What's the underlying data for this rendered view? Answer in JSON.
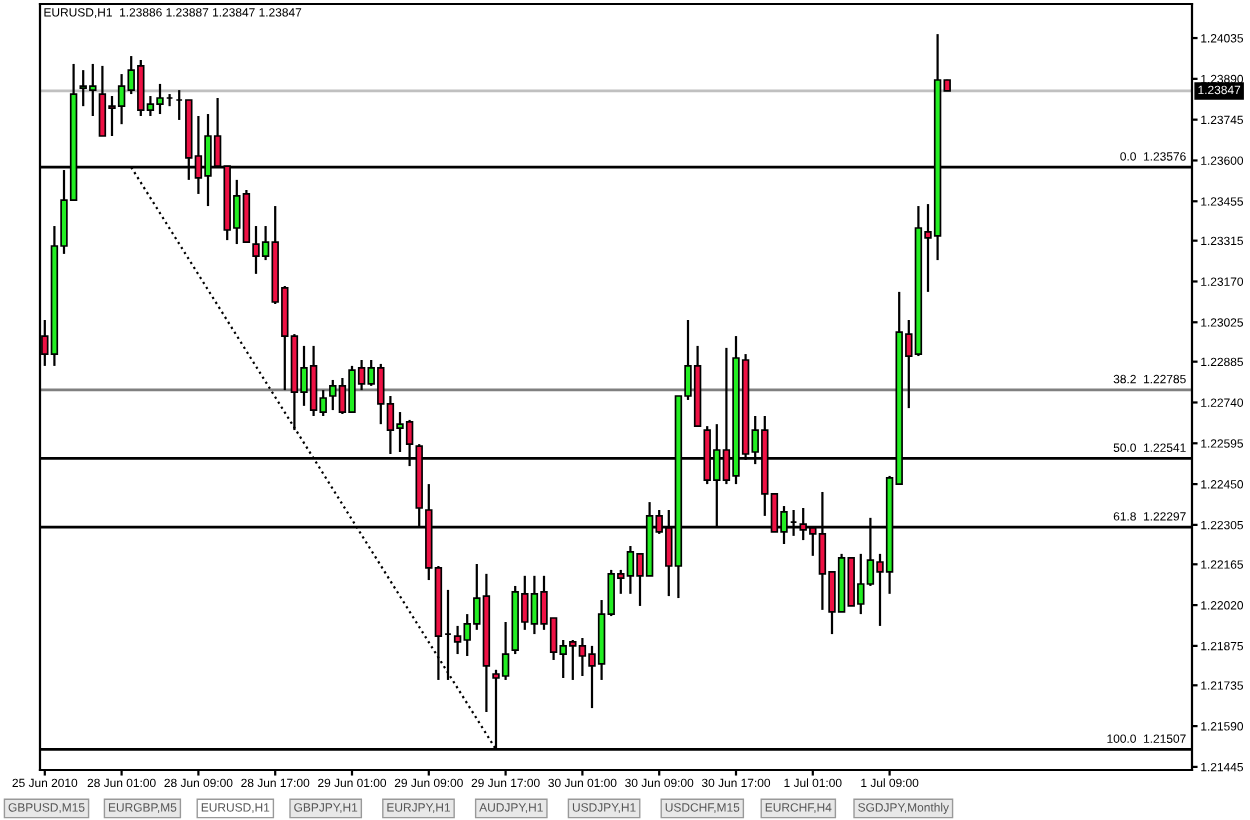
{
  "chart_data": {
    "type": "candlestick",
    "title": "EURUSD,H1  1.23886 1.23887 1.23847 1.23847",
    "categories": [
      "25 Jun 2010",
      null,
      null,
      null,
      null,
      null,
      null,
      null,
      "28 Jun 01:00",
      null,
      null,
      null,
      null,
      null,
      null,
      null,
      "28 Jun 09:00",
      null,
      null,
      null,
      null,
      null,
      null,
      null,
      "28 Jun 17:00",
      null,
      null,
      null,
      null,
      null,
      null,
      null,
      "29 Jun 01:00",
      null,
      null,
      null,
      null,
      null,
      null,
      null,
      "29 Jun 09:00",
      null,
      null,
      null,
      null,
      null,
      null,
      null,
      "29 Jun 17:00",
      null,
      null,
      null,
      null,
      null,
      null,
      null,
      "30 Jun 01:00",
      null,
      null,
      null,
      null,
      null,
      null,
      null,
      "30 Jun 09:00",
      null,
      null,
      null,
      null,
      null,
      null,
      null,
      "30 Jun 17:00",
      null,
      null,
      null,
      null,
      null,
      null,
      null,
      "1 Jul 01:00",
      null,
      null,
      null,
      null,
      null,
      null,
      null,
      "1 Jul 09:00",
      null,
      null,
      null,
      null,
      null,
      null,
      null,
      null,
      null,
      null,
      null,
      null,
      null,
      null,
      null,
      null,
      null,
      null,
      null,
      null,
      null,
      null,
      null,
      null,
      null,
      null,
      null,
      null,
      null,
      null,
      null
    ],
    "ohlc": [
      [
        1.22976,
        1.23033,
        1.2287,
        1.22912
      ],
      [
        1.22912,
        1.23367,
        1.2287,
        1.23296
      ],
      [
        1.23296,
        1.23566,
        1.23268,
        1.23459
      ],
      [
        1.23459,
        1.23943,
        1.23459,
        1.23836
      ],
      [
        1.23857,
        1.23921,
        1.23793,
        1.23864
      ],
      [
        1.2385,
        1.23943,
        1.23758,
        1.23864
      ],
      [
        1.23836,
        1.23936,
        1.23687,
        1.23687
      ],
      [
        1.23793,
        1.23829,
        1.23687,
        1.23786
      ],
      [
        1.23793,
        1.23907,
        1.23729,
        1.23864
      ],
      [
        1.2385,
        1.23971,
        1.23836,
        1.23921
      ],
      [
        1.23936,
        1.23957,
        1.23758,
        1.23779
      ],
      [
        1.23779,
        1.23829,
        1.23758,
        1.238
      ],
      [
        1.238,
        1.23872,
        1.23765,
        1.23822
      ],
      [
        1.23822,
        1.23836,
        1.23793,
        1.23822
      ],
      [
        1.23815,
        1.2385,
        1.23744,
        1.23815
      ],
      [
        1.23815,
        1.23815,
        1.23531,
        1.23609
      ],
      [
        1.23616,
        1.23758,
        1.23481,
        1.23538
      ],
      [
        1.23545,
        1.23765,
        1.23438,
        1.23687
      ],
      [
        1.23687,
        1.23822,
        1.2358,
        1.2358
      ],
      [
        1.2358,
        1.2358,
        1.23317,
        1.23353
      ],
      [
        1.2336,
        1.23531,
        1.23303,
        1.23474
      ],
      [
        1.23481,
        1.23495,
        1.2331,
        1.2331
      ],
      [
        1.23303,
        1.23367,
        1.23197,
        1.2326
      ],
      [
        1.2326,
        1.23367,
        1.23246,
        1.2331
      ],
      [
        1.2331,
        1.23438,
        1.2309,
        1.23097
      ],
      [
        1.23147,
        1.23154,
        1.22784,
        1.22976
      ],
      [
        1.22976,
        1.22983,
        1.22642,
        1.22777
      ],
      [
        1.22777,
        1.22941,
        1.22728,
        1.22863
      ],
      [
        1.2287,
        1.22941,
        1.22692,
        1.22713
      ],
      [
        1.22706,
        1.22784,
        1.22692,
        1.22756
      ],
      [
        1.22763,
        1.2282,
        1.22713,
        1.22799
      ],
      [
        1.22799,
        1.22827,
        1.22699,
        1.22706
      ],
      [
        1.22706,
        1.2287,
        1.22706,
        1.22855
      ],
      [
        1.22863,
        1.22891,
        1.22784,
        1.22806
      ],
      [
        1.22806,
        1.22891,
        1.22799,
        1.22863
      ],
      [
        1.22863,
        1.22877,
        1.22663,
        1.22735
      ],
      [
        1.22735,
        1.22763,
        1.22557,
        1.22642
      ],
      [
        1.22649,
        1.22706,
        1.22564,
        1.22663
      ],
      [
        1.22671,
        1.22678,
        1.22514,
        1.22592
      ],
      [
        1.22585,
        1.22592,
        1.22301,
        1.22365
      ],
      [
        1.22358,
        1.2245,
        1.22109,
        1.22152
      ],
      [
        1.22152,
        1.22159,
        1.21754,
        1.2191
      ],
      [
        1.21917,
        1.22074,
        1.21754,
        1.21917
      ],
      [
        1.2191,
        1.21946,
        1.21846,
        1.21889
      ],
      [
        1.21896,
        1.21988,
        1.21839,
        1.21953
      ],
      [
        1.21953,
        1.22166,
        1.21932,
        1.22045
      ],
      [
        1.22052,
        1.22131,
        1.2164,
        1.21804
      ],
      [
        1.21775,
        1.2179,
        1.21507,
        1.21761
      ],
      [
        1.21768,
        1.2196,
        1.21754,
        1.21846
      ],
      [
        1.2186,
        1.22088,
        1.21846,
        1.22067
      ],
      [
        1.2206,
        1.22124,
        1.21932,
        1.2196
      ],
      [
        1.21953,
        1.22124,
        1.21917,
        1.2206
      ],
      [
        1.22067,
        1.22124,
        1.21932,
        1.21953
      ],
      [
        1.21974,
        1.21974,
        1.21825,
        1.21853
      ],
      [
        1.21846,
        1.21896,
        1.21761,
        1.21875
      ],
      [
        1.21889,
        1.21896,
        1.21754,
        1.21875
      ],
      [
        1.21875,
        1.21903,
        1.21768,
        1.21839
      ],
      [
        1.21846,
        1.21875,
        1.21654,
        1.21804
      ],
      [
        1.21811,
        1.22038,
        1.21754,
        1.21988
      ],
      [
        1.21988,
        1.22145,
        1.21981,
        1.22131
      ],
      [
        1.22131,
        1.22145,
        1.2206,
        1.22116
      ],
      [
        1.22124,
        1.2223,
        1.2206,
        1.22209
      ],
      [
        1.22202,
        1.22202,
        1.22017,
        1.22124
      ],
      [
        1.22124,
        1.22386,
        1.22124,
        1.22337
      ],
      [
        1.22337,
        1.22358,
        1.22273,
        1.2228
      ],
      [
        1.22294,
        1.22358,
        1.22052,
        1.22159
      ],
      [
        1.22159,
        1.22763,
        1.22045,
        1.22763
      ],
      [
        1.22763,
        1.23033,
        1.22749,
        1.2287
      ],
      [
        1.2287,
        1.22941,
        1.22656,
        1.22656
      ],
      [
        1.22642,
        1.22656,
        1.2245,
        1.22464
      ],
      [
        1.22464,
        1.22663,
        1.22301,
        1.22571
      ],
      [
        1.22571,
        1.22934,
        1.2245,
        1.22464
      ],
      [
        1.22479,
        1.22976,
        1.2245,
        1.22898
      ],
      [
        1.22891,
        1.22912,
        1.22536,
        1.22557
      ],
      [
        1.22564,
        1.22692,
        1.22521,
        1.22642
      ],
      [
        1.22642,
        1.22692,
        1.22337,
        1.22415
      ],
      [
        1.22415,
        1.22415,
        1.2228,
        1.2228
      ],
      [
        1.2228,
        1.22372,
        1.22237,
        1.22351
      ],
      [
        1.22315,
        1.22358,
        1.22266,
        1.22315
      ],
      [
        1.22308,
        1.22365,
        1.22251,
        1.22287
      ],
      [
        1.22294,
        1.22301,
        1.22195,
        1.22273
      ],
      [
        1.22273,
        1.22422,
        1.22003,
        1.22131
      ],
      [
        1.22138,
        1.22138,
        1.21917,
        1.21996
      ],
      [
        1.21996,
        1.22202,
        1.21996,
        1.22188
      ],
      [
        1.22188,
        1.22188,
        1.22017,
        1.22017
      ],
      [
        1.22024,
        1.22202,
        1.21988,
        1.22095
      ],
      [
        1.22095,
        1.2233,
        1.22088,
        1.2218
      ],
      [
        1.22173,
        1.22202,
        1.21946,
        1.22138
      ],
      [
        1.22138,
        1.22479,
        1.2206,
        1.22472
      ],
      [
        1.2245,
        1.23133,
        1.2245,
        1.2299
      ],
      [
        1.22983,
        1.23033,
        1.2272,
        1.22905
      ],
      [
        1.22912,
        1.23438,
        1.22905,
        1.2336
      ],
      [
        1.23346,
        1.23445,
        1.23133,
        1.23325
      ],
      [
        1.23332,
        1.24049,
        1.23246,
        1.23886
      ],
      [
        1.23886,
        1.23887,
        1.23847,
        1.23847
      ],
      null,
      null,
      null,
      null,
      null,
      null,
      null,
      null,
      null,
      null,
      null,
      null,
      null,
      null,
      null,
      null,
      null,
      null,
      null,
      null,
      null,
      null,
      null,
      null,
      null
    ],
    "series": [
      {
        "type": "line",
        "values": [
          null,
          null,
          null,
          null,
          null,
          null,
          null,
          null,
          null,
          1.23576,
          null,
          null,
          null,
          null,
          null,
          null,
          null,
          null,
          null,
          null,
          null,
          null,
          null,
          null,
          null,
          null,
          null,
          null,
          null,
          null,
          null,
          null,
          null,
          null,
          null,
          null,
          null,
          null,
          null,
          null,
          null,
          null,
          null,
          null,
          null,
          null,
          null,
          1.21507,
          null,
          null,
          null,
          null,
          null,
          null,
          null,
          null,
          null,
          null,
          null,
          null,
          null,
          null,
          null,
          null,
          null,
          null,
          null,
          null,
          null,
          null,
          null,
          null,
          null,
          null,
          null,
          null,
          null,
          null,
          null,
          null,
          null,
          null,
          null,
          null,
          null,
          null,
          null,
          null,
          null,
          null,
          null,
          null,
          null,
          null,
          null,
          null,
          null,
          null,
          null,
          null,
          null,
          null,
          null,
          null,
          null,
          null,
          null,
          null,
          null,
          null,
          null,
          null,
          null,
          null,
          null,
          null,
          null,
          null,
          null,
          null
        ],
        "color": "#000000",
        "line_style": "dotted"
      }
    ],
    "ylim": [
      1.21434,
      1.24156
    ],
    "yticks": [
      1.24035,
      {
        "value": 1.2389,
        "label": "1.23890"
      },
      1.23745,
      {
        "value": 1.236,
        "label": "1.23600"
      },
      1.23455,
      1.23315,
      {
        "value": 1.2317,
        "label": "1.23170"
      },
      1.23025,
      1.22885,
      {
        "value": 1.2274,
        "label": "1.22740"
      },
      1.22595,
      {
        "value": 1.2245,
        "label": "1.22450"
      },
      1.22305,
      1.22165,
      {
        "value": 1.2202,
        "label": "1.22020"
      },
      1.21875,
      1.21735,
      {
        "value": 1.2159,
        "label": "1.21590"
      },
      1.21445
    ],
    "ref_lines": [
      {
        "axis": "y",
        "value": 1.23847,
        "label": "1.23847",
        "color": "#c0c0c0"
      },
      {
        "axis": "y",
        "value": 1.23576,
        "label": "0.0  1.23576",
        "color": "#000000"
      },
      {
        "axis": "y",
        "value": 1.22785,
        "label": "38.2  1.22785",
        "color": "#808080"
      },
      {
        "axis": "y",
        "value": 1.22541,
        "label": "50.0  1.22541",
        "color": "#000000"
      },
      {
        "axis": "y",
        "value": 1.22297,
        "label": "61.8  1.22297",
        "color": "#000000"
      },
      {
        "axis": "y",
        "value": 1.21507,
        "label": "100.0  1.21507",
        "color": "#000000"
      }
    ],
    "annotations": [
      "GBPUSD,M15",
      "EURGBP,M5",
      "EURUSD,H1",
      "GBPJPY,H1",
      "EURJPY,H1",
      "AUDJPY,H1",
      "USDJPY,H1",
      "USDCHF,M15",
      "EURCHF,H4",
      "SGDJPY,Monthly"
    ],
    "grid": false,
    "legend": false
  }
}
